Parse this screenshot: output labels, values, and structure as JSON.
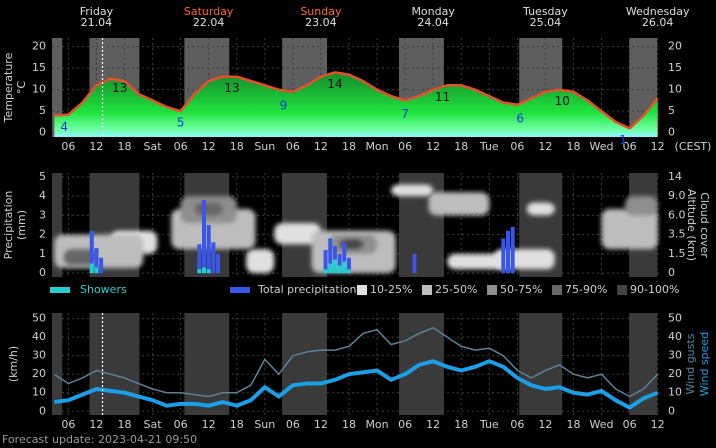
{
  "header": {
    "days": [
      {
        "name": "Friday",
        "date": "21.04",
        "color": "#dddddd"
      },
      {
        "name": "Saturday",
        "date": "22.04",
        "color": "#ff6a1a"
      },
      {
        "name": "Sunday",
        "date": "23.04",
        "color": "#ff6a1a"
      },
      {
        "name": "Monday",
        "date": "24.04",
        "color": "#dddddd"
      },
      {
        "name": "Tuesday",
        "date": "25.04",
        "color": "#dddddd"
      },
      {
        "name": "Wednesday",
        "date": "26.04",
        "color": "#dddddd"
      }
    ]
  },
  "shaded_hours": [
    [
      2.5,
      4.7
    ],
    [
      10.5,
      21.2
    ],
    [
      30.8,
      40.4
    ],
    [
      51.7,
      61.3
    ],
    [
      76.7,
      86.3
    ],
    [
      102.4,
      111.6
    ],
    [
      125.9,
      131.9
    ]
  ],
  "now": 13.3,
  "chart_data": [
    {
      "type": "area",
      "ylabel": "Temperature",
      "yunit": "°C",
      "xunit": "(CEST)",
      "xlim": [
        2.5,
        132.5
      ],
      "xticks": [
        {
          "value": 6,
          "label": "06"
        },
        {
          "value": 12,
          "label": "12"
        },
        {
          "value": 18,
          "label": "18"
        },
        {
          "value": 24,
          "label": "Sat"
        },
        {
          "value": 30,
          "label": "06"
        },
        {
          "value": 36,
          "label": "12"
        },
        {
          "value": 42,
          "label": "18"
        },
        {
          "value": 48,
          "label": "Sun"
        },
        {
          "value": 54,
          "label": "06"
        },
        {
          "value": 60,
          "label": "12"
        },
        {
          "value": 66,
          "label": "18"
        },
        {
          "value": 72,
          "label": "Mon"
        },
        {
          "value": 78,
          "label": "06"
        },
        {
          "value": 84,
          "label": "12"
        },
        {
          "value": 90,
          "label": "18"
        },
        {
          "value": 96,
          "label": "Tue"
        },
        {
          "value": 102,
          "label": "06"
        },
        {
          "value": 108,
          "label": "12"
        },
        {
          "value": 114,
          "label": "18"
        },
        {
          "value": 120,
          "label": "Wed"
        },
        {
          "value": 126,
          "label": "06"
        },
        {
          "value": 132,
          "label": "12"
        }
      ],
      "ylim": [
        -1,
        22
      ],
      "yticks": [
        0,
        5,
        10,
        15,
        20
      ],
      "color": "#e8502a",
      "x": [
        3,
        6,
        9,
        12,
        15,
        18,
        21,
        24,
        27,
        30,
        33,
        36,
        39,
        42,
        45,
        48,
        51,
        54,
        57,
        60,
        63,
        66,
        69,
        72,
        75,
        78,
        81,
        84,
        87,
        90,
        93,
        96,
        99,
        102,
        105,
        108,
        111,
        114,
        117,
        120,
        123,
        126,
        129,
        132
      ],
      "values": [
        4,
        4.2,
        7,
        11,
        12.5,
        12,
        9,
        7.5,
        6,
        5,
        9,
        12,
        13,
        13,
        12,
        11,
        10,
        9.5,
        11,
        13,
        14,
        13.5,
        12,
        10,
        8.5,
        7.5,
        8.5,
        10,
        11,
        11,
        10,
        8.5,
        7,
        6.5,
        8,
        9.5,
        10,
        9.5,
        7.5,
        5,
        2.5,
        1,
        4,
        8
      ],
      "annotations": [
        {
          "x": 5.1,
          "value": 4,
          "color": "#1a3adf"
        },
        {
          "x": 17,
          "value": 13,
          "color": "#111111"
        },
        {
          "x": 30,
          "value": 5,
          "color": "#1a3adf"
        },
        {
          "x": 41,
          "value": 13,
          "color": "#111111"
        },
        {
          "x": 52,
          "value": 9,
          "color": "#1a3adf"
        },
        {
          "x": 63,
          "value": 14,
          "color": "#111111"
        },
        {
          "x": 78,
          "value": 7,
          "color": "#1a3adf"
        },
        {
          "x": 86,
          "value": 11,
          "color": "#111111"
        },
        {
          "x": 102.6,
          "value": 6,
          "color": "#1a3adf"
        },
        {
          "x": 111.6,
          "value": 10,
          "color": "#111111"
        },
        {
          "x": 124.6,
          "value": 1,
          "color": "#1a3adf"
        }
      ]
    },
    {
      "type": "bar",
      "ylabel": "Precipitation",
      "yunit": "(mm)",
      "y2label": "Altitude (km)",
      "y2label2": "Cloud cover",
      "xlim": [
        2.5,
        132.5
      ],
      "xticks": [
        {
          "value": 6,
          "label": "06"
        },
        {
          "value": 12,
          "label": "12"
        },
        {
          "value": 18,
          "label": "18"
        },
        {
          "value": 24,
          "label": "Sat"
        },
        {
          "value": 30,
          "label": "06"
        },
        {
          "value": 36,
          "label": "12"
        },
        {
          "value": 42,
          "label": "18"
        },
        {
          "value": 48,
          "label": "Sun"
        },
        {
          "value": 54,
          "label": "06"
        },
        {
          "value": 60,
          "label": "12"
        },
        {
          "value": 66,
          "label": "18"
        },
        {
          "value": 72,
          "label": "Mon"
        },
        {
          "value": 78,
          "label": "06"
        },
        {
          "value": 84,
          "label": "12"
        },
        {
          "value": 90,
          "label": "18"
        },
        {
          "value": 96,
          "label": "Tue"
        },
        {
          "value": 102,
          "label": "06"
        },
        {
          "value": 108,
          "label": "12"
        },
        {
          "value": 114,
          "label": "18"
        },
        {
          "value": 120,
          "label": "Wed"
        },
        {
          "value": 126,
          "label": "06"
        },
        {
          "value": 132,
          "label": "12"
        }
      ],
      "ylim": [
        -0.2,
        5.2
      ],
      "yticks": [
        0,
        1,
        2,
        3,
        4,
        5
      ],
      "y2ticks": [
        0,
        1.5,
        3.5,
        {
          "value": 6,
          "label": "6.0"
        },
        {
          "value": 9,
          "label": "9.0"
        },
        14
      ],
      "x": [
        11,
        12,
        13,
        34,
        35,
        36,
        37,
        38,
        61,
        62,
        63,
        64,
        65,
        66,
        80,
        99,
        100,
        101
      ],
      "series": [
        {
          "name": "Total precipitation",
          "color": "#3a55e8",
          "values": [
            2.2,
            1.3,
            0.8,
            1.5,
            3.8,
            2.5,
            1.6,
            1.0,
            1.2,
            1.8,
            1.4,
            1.0,
            1.6,
            0.8,
            1.0,
            1.8,
            2.2,
            2.4
          ]
        },
        {
          "name": "Showers",
          "color": "#22d0d0",
          "values": [
            0.5,
            0.3,
            0,
            0.2,
            0.3,
            0.2,
            0,
            0,
            0.2,
            0.5,
            0.7,
            0.4,
            0.6,
            0.2,
            0,
            0,
            0,
            0
          ]
        }
      ],
      "cloud_cover": [
        {
          "name": "10-25%",
          "color": "#e0e0e0",
          "areas": [
            {
              "x": [
                15,
                25
              ],
              "altitude": [
                1.5,
                4
              ]
            },
            {
              "x": [
                44,
                50
              ],
              "altitude": [
                0,
                2
              ]
            },
            {
              "x": [
                50,
                60
              ],
              "altitude": [
                2.5,
                5
              ]
            },
            {
              "x": [
                75,
                84
              ],
              "altitude": [
                9,
                12
              ]
            },
            {
              "x": [
                87,
                100
              ],
              "altitude": [
                0.3,
                1.5
              ]
            },
            {
              "x": [
                97,
                110
              ],
              "altitude": [
                0.3,
                2
              ]
            },
            {
              "x": [
                104,
                110
              ],
              "altitude": [
                6,
                8
              ]
            }
          ]
        },
        {
          "name": "25-50%",
          "color": "#bdbdbd",
          "areas": [
            {
              "x": [
                3,
                22
              ],
              "altitude": [
                0.4,
                3.5
              ]
            },
            {
              "x": [
                28,
                46
              ],
              "altitude": [
                2,
                7
              ]
            },
            {
              "x": [
                58,
                76
              ],
              "altitude": [
                0,
                4
              ]
            },
            {
              "x": [
                83,
                96
              ],
              "altitude": [
                6,
                10
              ]
            },
            {
              "x": [
                120,
                132
              ],
              "altitude": [
                2,
                7
              ]
            }
          ]
        },
        {
          "name": "50-75%",
          "color": "#8e8e8e",
          "areas": [
            {
              "x": [
                30,
                42
              ],
              "altitude": [
                5,
                9
              ]
            },
            {
              "x": [
                62,
                72
              ],
              "altitude": [
                1.5,
                3.5
              ]
            },
            {
              "x": [
                125,
                132
              ],
              "altitude": [
                6,
                9
              ]
            }
          ]
        },
        {
          "name": "75-90%",
          "color": "#666666",
          "areas": [
            {
              "x": [
                5,
                12
              ],
              "altitude": [
                0.6,
                2
              ]
            },
            {
              "x": [
                33,
                39
              ],
              "altitude": [
                6,
                8
              ]
            }
          ]
        },
        {
          "name": "90-100%",
          "color": "#444444",
          "areas": [
            {
              "x": [
                64,
                69
              ],
              "altitude": [
                2,
                3
              ]
            }
          ]
        }
      ]
    },
    {
      "type": "line",
      "ylabel": "(km/h)",
      "xlim": [
        2.5,
        132.5
      ],
      "xticks": [
        {
          "value": 6,
          "label": "06"
        },
        {
          "value": 12,
          "label": "12"
        },
        {
          "value": 18,
          "label": "18"
        },
        {
          "value": 24,
          "label": "Sat"
        },
        {
          "value": 30,
          "label": "06"
        },
        {
          "value": 36,
          "label": "12"
        },
        {
          "value": 42,
          "label": "18"
        },
        {
          "value": 48,
          "label": "Sun"
        },
        {
          "value": 54,
          "label": "06"
        },
        {
          "value": 60,
          "label": "12"
        },
        {
          "value": 66,
          "label": "18"
        },
        {
          "value": 72,
          "label": "Mon"
        },
        {
          "value": 78,
          "label": "06"
        },
        {
          "value": 84,
          "label": "12"
        },
        {
          "value": 90,
          "label": "18"
        },
        {
          "value": 96,
          "label": "Tue"
        },
        {
          "value": 102,
          "label": "06"
        },
        {
          "value": 108,
          "label": "12"
        },
        {
          "value": 114,
          "label": "18"
        },
        {
          "value": 120,
          "label": "Wed"
        },
        {
          "value": 126,
          "label": "06"
        },
        {
          "value": 132,
          "label": "12"
        }
      ],
      "ylim": [
        -2,
        53
      ],
      "yticks": [
        0,
        10,
        20,
        30,
        40,
        50
      ],
      "x": [
        3,
        6,
        9,
        12,
        15,
        18,
        21,
        24,
        27,
        30,
        33,
        36,
        39,
        42,
        45,
        48,
        51,
        54,
        57,
        60,
        63,
        66,
        69,
        72,
        75,
        78,
        81,
        84,
        87,
        90,
        93,
        96,
        99,
        102,
        105,
        108,
        111,
        114,
        117,
        120,
        123,
        126,
        129,
        132
      ],
      "series": [
        {
          "name": "Wind gusts",
          "color": "#5b8199",
          "values": [
            20,
            15,
            18,
            22,
            20,
            18,
            15,
            12,
            10,
            10,
            9,
            8,
            10,
            10,
            14,
            28,
            20,
            30,
            32,
            33,
            33,
            35,
            42,
            44,
            36,
            38,
            42,
            45,
            40,
            35,
            33,
            34,
            30,
            22,
            18,
            22,
            25,
            20,
            18,
            20,
            12,
            8,
            12,
            20
          ]
        },
        {
          "name": "Wind speed",
          "color": "#1a9fe8",
          "values": [
            5,
            6,
            9,
            12,
            11,
            10,
            8,
            6,
            3,
            4,
            4,
            3,
            5,
            3,
            6,
            13,
            8,
            14,
            15,
            15,
            17,
            20,
            21,
            22,
            17,
            20,
            25,
            27,
            24,
            22,
            24,
            27,
            24,
            18,
            14,
            12,
            13,
            10,
            9,
            11,
            6,
            2,
            7,
            10
          ]
        }
      ]
    }
  ],
  "footer": "Forecast update: 2023-04-21 09:50"
}
